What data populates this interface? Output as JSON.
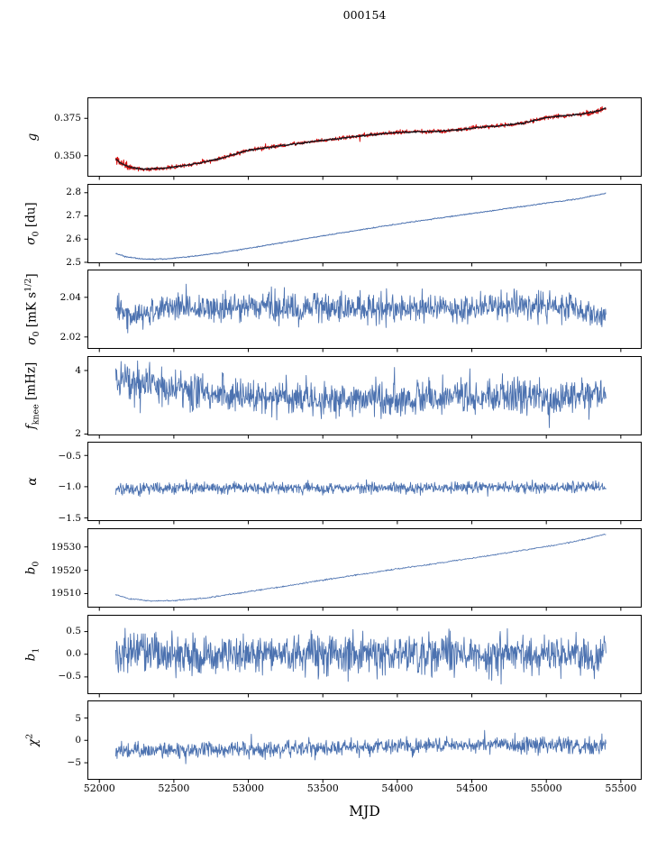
{
  "chart_data": {
    "type": "line",
    "title": "000154",
    "xlabel": "MJD",
    "legend": "none",
    "grid": false,
    "x_lim": [
      51920,
      55640
    ],
    "x_ticks": [
      52000,
      52500,
      53000,
      53500,
      54000,
      54500,
      55000,
      55500
    ],
    "x_tick_labels": [
      "52000",
      "52500",
      "53000",
      "53500",
      "54000",
      "54500",
      "55000",
      "55500"
    ],
    "x_data_range": [
      52110,
      55400
    ],
    "colors": {
      "primary_line": "#4c72b0",
      "overlay_red": "#da0f0f",
      "fit_dark": "#17171d",
      "axis": "#000000"
    },
    "panels": [
      {
        "id": "g",
        "ylabel": "g",
        "ylabel_html": "<i>g</i>",
        "ylim": [
          0.336,
          0.389
        ],
        "yticks": [
          0.35,
          0.375
        ],
        "ytick_labels": [
          "0.350",
          "0.375"
        ],
        "series": [
          {
            "name": "g-measured",
            "color_ref": "overlay_red",
            "width": 1.0,
            "seed": 11,
            "n": 1300,
            "trend": [
              [
                52110,
                0.3478
              ],
              [
                52140,
                0.3455
              ],
              [
                52200,
                0.3425
              ],
              [
                52300,
                0.341
              ],
              [
                52450,
                0.3418
              ],
              [
                52600,
                0.3438
              ],
              [
                52800,
                0.3478
              ],
              [
                53000,
                0.3537
              ],
              [
                53200,
                0.3565
              ],
              [
                53400,
                0.359
              ],
              [
                53600,
                0.3615
              ],
              [
                53800,
                0.3638
              ],
              [
                53950,
                0.3652
              ],
              [
                54100,
                0.366
              ],
              [
                54250,
                0.3662
              ],
              [
                54400,
                0.3672
              ],
              [
                54550,
                0.369
              ],
              [
                54700,
                0.3702
              ],
              [
                54850,
                0.3718
              ],
              [
                55000,
                0.3756
              ],
              [
                55150,
                0.377
              ],
              [
                55250,
                0.378
              ],
              [
                55350,
                0.38
              ],
              [
                55400,
                0.382
              ]
            ],
            "noise": [
              [
                52110,
                0.0022
              ],
              [
                52170,
                0.002
              ],
              [
                52250,
                0.0008
              ],
              [
                55200,
                0.0008
              ],
              [
                55400,
                0.0014
              ]
            ],
            "spike_prob": 0.004,
            "spike_scale": 4
          },
          {
            "name": "g-fit",
            "color_ref": "fit_dark",
            "width": 1.3,
            "seed": 12,
            "n": 800,
            "trend": [
              [
                52110,
                0.3478
              ],
              [
                52140,
                0.3455
              ],
              [
                52200,
                0.3425
              ],
              [
                52300,
                0.341
              ],
              [
                52450,
                0.3418
              ],
              [
                52600,
                0.3438
              ],
              [
                52800,
                0.3478
              ],
              [
                53000,
                0.3537
              ],
              [
                53200,
                0.3565
              ],
              [
                53400,
                0.359
              ],
              [
                53600,
                0.3615
              ],
              [
                53800,
                0.3638
              ],
              [
                53950,
                0.3652
              ],
              [
                54100,
                0.366
              ],
              [
                54250,
                0.3662
              ],
              [
                54400,
                0.3672
              ],
              [
                54550,
                0.369
              ],
              [
                54700,
                0.3702
              ],
              [
                54850,
                0.3718
              ],
              [
                55000,
                0.3756
              ],
              [
                55150,
                0.377
              ],
              [
                55250,
                0.378
              ],
              [
                55350,
                0.38
              ],
              [
                55400,
                0.382
              ]
            ],
            "noise": [
              [
                52110,
                0.0003
              ],
              [
                55400,
                0.0003
              ]
            ],
            "spike_prob": 0,
            "spike_scale": 0
          }
        ]
      },
      {
        "id": "sigma0-du",
        "ylabel": "sigma_0 [du]",
        "ylabel_html": "<i>&#963;</i><sub>0</sub> [du]",
        "ylim": [
          2.496,
          2.838
        ],
        "yticks": [
          2.5,
          2.6,
          2.7,
          2.8
        ],
        "ytick_labels": [
          "2.5",
          "2.6",
          "2.7",
          "2.8"
        ],
        "series": [
          {
            "name": "sigma0-du",
            "color_ref": "primary_line",
            "width": 1.0,
            "seed": 21,
            "n": 750,
            "trend": [
              [
                52110,
                2.538
              ],
              [
                52180,
                2.524
              ],
              [
                52300,
                2.513
              ],
              [
                52450,
                2.515
              ],
              [
                52600,
                2.524
              ],
              [
                52800,
                2.54
              ],
              [
                53000,
                2.56
              ],
              [
                53250,
                2.587
              ],
              [
                53500,
                2.614
              ],
              [
                53750,
                2.64
              ],
              [
                54000,
                2.665
              ],
              [
                54250,
                2.688
              ],
              [
                54500,
                2.71
              ],
              [
                54750,
                2.733
              ],
              [
                55000,
                2.755
              ],
              [
                55200,
                2.772
              ],
              [
                55400,
                2.798
              ]
            ],
            "noise": [
              [
                52110,
                0.0022
              ],
              [
                52200,
                0.0014
              ],
              [
                55400,
                0.0014
              ]
            ],
            "spike_prob": 0,
            "spike_scale": 0
          }
        ]
      },
      {
        "id": "sigma0-mk",
        "ylabel": "sigma_0 [mK s^1/2]",
        "ylabel_html": "<i>&#963;</i><sub>0</sub> [mK s<sup>1/2</sup>]",
        "ylim": [
          2.014,
          2.054
        ],
        "yticks": [
          2.02,
          2.04
        ],
        "ytick_labels": [
          "2.02",
          "2.04"
        ],
        "series": [
          {
            "name": "sigma0-mk",
            "color_ref": "primary_line",
            "width": 0.9,
            "seed": 31,
            "n": 1100,
            "trend": [
              [
                52110,
                2.033
              ],
              [
                52200,
                2.031
              ],
              [
                52400,
                2.034
              ],
              [
                53000,
                2.035
              ],
              [
                54000,
                2.0348
              ],
              [
                54800,
                2.0355
              ],
              [
                55150,
                2.0352
              ],
              [
                55400,
                2.0295
              ]
            ],
            "noise": [
              [
                52110,
                0.0045
              ],
              [
                55150,
                0.0045
              ],
              [
                55400,
                0.0028
              ]
            ],
            "spike_prob": 0.01,
            "spike_scale": 2.0
          }
        ]
      },
      {
        "id": "fknee",
        "ylabel": "f_knee [mHz]",
        "ylabel_html": "<i>f</i><sub>knee</sub> [mHz]",
        "ylim": [
          1.957,
          4.454
        ],
        "yticks": [
          2,
          4
        ],
        "ytick_labels": [
          "2",
          "4"
        ],
        "series": [
          {
            "name": "fknee",
            "color_ref": "primary_line",
            "width": 0.9,
            "seed": 41,
            "n": 1100,
            "trend": [
              [
                52110,
                3.75
              ],
              [
                52300,
                3.55
              ],
              [
                52600,
                3.35
              ],
              [
                53000,
                3.2
              ],
              [
                53500,
                3.12
              ],
              [
                54000,
                3.1
              ],
              [
                54500,
                3.15
              ],
              [
                55000,
                3.2
              ],
              [
                55400,
                3.25
              ]
            ],
            "noise": [
              [
                52110,
                0.42
              ],
              [
                52600,
                0.38
              ],
              [
                53000,
                0.32
              ],
              [
                55400,
                0.32
              ]
            ],
            "spike_prob": 0.012,
            "spike_scale": 2.2
          }
        ]
      },
      {
        "id": "alpha",
        "ylabel": "alpha",
        "ylabel_html": "<i>&#945;</i>",
        "ylim": [
          -1.55,
          -0.28
        ],
        "yticks": [
          -1.5,
          -1.0,
          -0.5
        ],
        "ytick_labels": [
          "−1.5",
          "−1.0",
          "−0.5"
        ],
        "series": [
          {
            "name": "alpha",
            "color_ref": "primary_line",
            "width": 0.9,
            "seed": 51,
            "n": 1100,
            "trend": [
              [
                52110,
                -1.03
              ],
              [
                53000,
                -1.02
              ],
              [
                54000,
                -1.02
              ],
              [
                55400,
                -1.01
              ]
            ],
            "noise": [
              [
                52110,
                0.055
              ],
              [
                55400,
                0.055
              ]
            ],
            "spike_prob": 0.01,
            "spike_scale": 3.0
          }
        ]
      },
      {
        "id": "b0",
        "ylabel": "b_0",
        "ylabel_html": "<i>b</i><sub>0</sub>",
        "ylim": [
          19504,
          19538
        ],
        "yticks": [
          19510,
          19520,
          19530
        ],
        "ytick_labels": [
          "19510",
          "19520",
          "19530"
        ],
        "series": [
          {
            "name": "b0",
            "color_ref": "primary_line",
            "width": 0.8,
            "seed": 61,
            "n": 900,
            "trend": [
              [
                52110,
                19509.5
              ],
              [
                52200,
                19507.8
              ],
              [
                52350,
                19506.8
              ],
              [
                52500,
                19507.0
              ],
              [
                52700,
                19508.0
              ],
              [
                53000,
                19510.8
              ],
              [
                53250,
                19513.2
              ],
              [
                53500,
                19515.8
              ],
              [
                53750,
                19518.2
              ],
              [
                54000,
                19520.6
              ],
              [
                54250,
                19522.8
              ],
              [
                54500,
                19525.2
              ],
              [
                54750,
                19527.6
              ],
              [
                55000,
                19530.2
              ],
              [
                55200,
                19532.4
              ],
              [
                55400,
                19535.6
              ]
            ],
            "noise": [
              [
                52110,
                0.18
              ],
              [
                55400,
                0.18
              ]
            ],
            "spike_prob": 0,
            "spike_scale": 0
          }
        ]
      },
      {
        "id": "b1",
        "ylabel": "b_1",
        "ylabel_html": "<i>b</i><sub>1</sub>",
        "ylim": [
          -0.88,
          0.87
        ],
        "yticks": [
          -0.5,
          0.0,
          0.5
        ],
        "ytick_labels": [
          "−0.5",
          "0.0",
          "0.5"
        ],
        "series": [
          {
            "name": "b1",
            "color_ref": "primary_line",
            "width": 0.9,
            "seed": 71,
            "n": 1100,
            "trend": [
              [
                52110,
                0.02
              ],
              [
                55400,
                0.0
              ]
            ],
            "noise": [
              [
                52110,
                0.26
              ],
              [
                55400,
                0.26
              ]
            ],
            "spike_prob": 0.02,
            "spike_scale": 2.2
          }
        ]
      },
      {
        "id": "chi2",
        "ylabel": "chi^2",
        "ylabel_html": "<i>&#967;</i><sup>2</sup>",
        "ylim": [
          -8.8,
          8.9
        ],
        "yticks": [
          -5,
          0,
          5
        ],
        "ytick_labels": [
          "−5",
          "0",
          "5"
        ],
        "series": [
          {
            "name": "chi2",
            "color_ref": "primary_line",
            "width": 0.9,
            "seed": 81,
            "n": 1100,
            "trend": [
              [
                52110,
                -2.3
              ],
              [
                52600,
                -2.2
              ],
              [
                53200,
                -2.0
              ],
              [
                53800,
                -1.6
              ],
              [
                54300,
                -1.2
              ],
              [
                54800,
                -1.0
              ],
              [
                55100,
                -1.0
              ],
              [
                55400,
                -1.3
              ]
            ],
            "noise": [
              [
                52110,
                1.05
              ],
              [
                55400,
                1.05
              ]
            ],
            "spike_prob": 0.015,
            "spike_scale": 2.2
          }
        ]
      }
    ]
  }
}
